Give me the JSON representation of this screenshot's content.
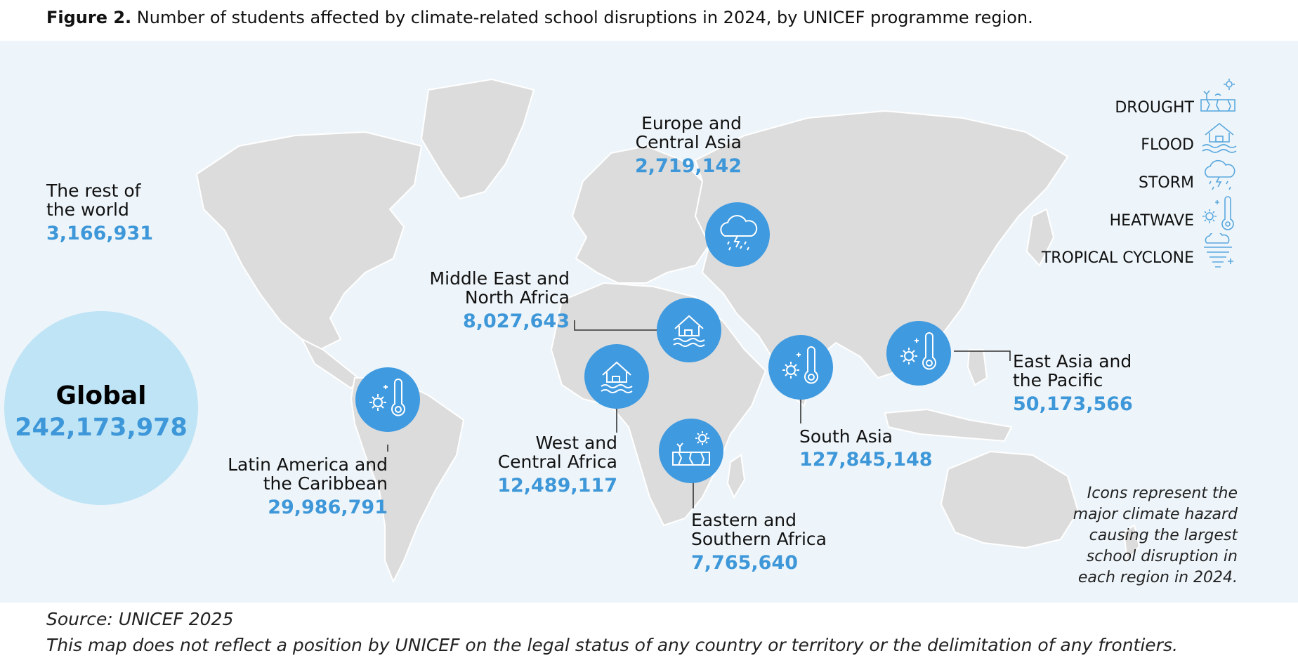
{
  "title": {
    "figure_label": "Figure 2.",
    "text": " Number of students affected by climate-related school disruptions in 2024, by UNICEF programme region."
  },
  "global": {
    "label": "Global",
    "value": "242,173,978"
  },
  "regions": {
    "rest_of_world": {
      "name_line1": "The rest of",
      "name_line2": "the world",
      "value": "3,166,931"
    },
    "europe_central_asia": {
      "name_line1": "Europe and",
      "name_line2": "Central Asia",
      "value": "2,719,142",
      "hazard": "storm"
    },
    "mena": {
      "name_line1": "Middle East and",
      "name_line2": "North Africa",
      "value": "8,027,643",
      "hazard": "flood"
    },
    "west_central_africa": {
      "name_line1": "West and",
      "name_line2": "Central Africa",
      "value": "12,489,117",
      "hazard": "flood"
    },
    "eastern_southern_africa": {
      "name_line1": "Eastern and",
      "name_line2": "Southern Africa",
      "value": "7,765,640",
      "hazard": "drought"
    },
    "south_asia": {
      "name_line1": "South Asia",
      "value": "127,845,148",
      "hazard": "heatwave"
    },
    "east_asia_pacific": {
      "name_line1": "East Asia and",
      "name_line2": "the Pacific",
      "value": "50,173,566",
      "hazard": "heatwave"
    },
    "latin_america_caribbean": {
      "name_line1": "Latin America and",
      "name_line2": "the Caribbean",
      "value": "29,986,791",
      "hazard": "heatwave"
    }
  },
  "legend": {
    "drought": "DROUGHT",
    "flood": "FLOOD",
    "storm": "STORM",
    "heatwave": "HEATWAVE",
    "tropical_cyclone": "TROPICAL CYCLONE"
  },
  "note": "Icons represent the major climate hazard causing the largest school disruption in each region in 2024.",
  "source": "Source: UNICEF 2025",
  "disclaimer": "This map does not reflect a position by UNICEF on the legal status of any country or territory or the delimitation of any frontiers.",
  "colors": {
    "accent": "#3d97d8",
    "icon_circle": "#3f9ae0",
    "global_circle": "#bfe4f6",
    "land": "#dcdcdc",
    "background": "#eef5fa"
  },
  "icons": [
    "storm-icon",
    "flood-icon",
    "drought-icon",
    "heatwave-icon",
    "tropical-cyclone-icon"
  ]
}
